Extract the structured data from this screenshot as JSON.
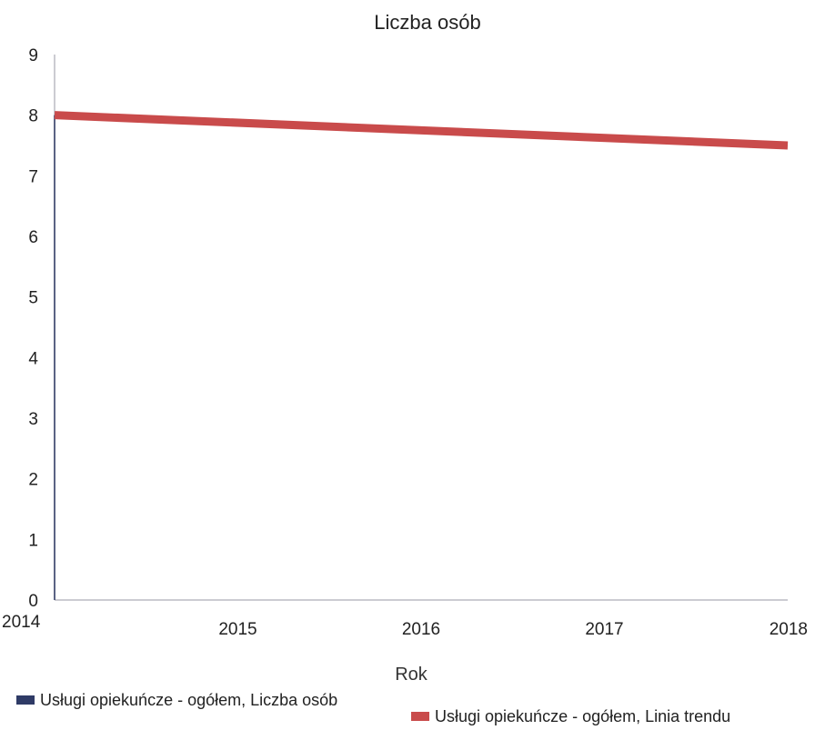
{
  "chart_data": {
    "type": "line",
    "title": "Liczba osób",
    "xlabel": "Rok",
    "ylabel": "",
    "x": [
      2014,
      2015,
      2016,
      2017,
      2018
    ],
    "xlim": [
      2014,
      2018
    ],
    "ylim": [
      0,
      9
    ],
    "yticks": [
      0,
      1,
      2,
      3,
      4,
      5,
      6,
      7,
      8,
      9
    ],
    "grid": false,
    "legend_position": "bottom",
    "series": [
      {
        "name": "Usługi opiekuńcze - ogółem, Liczba osób",
        "color": "#2f3b66",
        "x": [
          2014,
          2014
        ],
        "values": [
          0,
          8
        ]
      },
      {
        "name": "Usługi opiekuńcze - ogółem, Linia trendu",
        "color": "#c94b4b",
        "x": [
          2014,
          2018
        ],
        "values": [
          8,
          7.5
        ]
      }
    ]
  }
}
